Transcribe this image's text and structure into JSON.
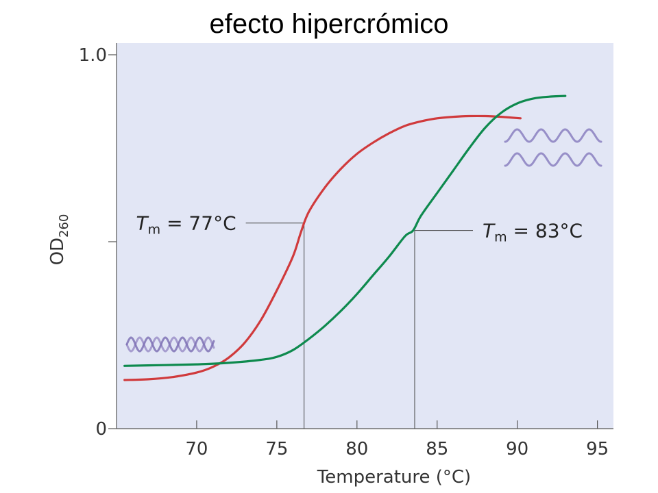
{
  "chart_data": {
    "type": "line",
    "title": "efecto hipercrómico",
    "xlabel": "Temperature (°C)",
    "ylabel_main": "OD",
    "ylabel_sub": "260",
    "xlim": [
      65,
      96
    ],
    "ylim": [
      0,
      1.0
    ],
    "x_ticks": [
      70,
      75,
      80,
      85,
      90,
      95
    ],
    "y_ticks": [
      {
        "value": 0,
        "label": "0"
      },
      {
        "value": 0.5,
        "label": ""
      },
      {
        "value": 1.0,
        "label": "1.0"
      }
    ],
    "series": [
      {
        "color": "#d03a3c",
        "x": [
          65.5,
          67,
          68.5,
          70,
          71,
          72,
          73,
          74,
          75,
          76,
          76.5,
          77,
          78,
          79,
          80,
          81,
          82,
          83,
          84,
          85,
          86,
          87,
          88,
          89,
          90.2
        ],
        "y": [
          0.13,
          0.132,
          0.138,
          0.15,
          0.165,
          0.19,
          0.23,
          0.29,
          0.37,
          0.46,
          0.525,
          0.58,
          0.645,
          0.695,
          0.735,
          0.765,
          0.79,
          0.81,
          0.822,
          0.83,
          0.834,
          0.836,
          0.836,
          0.834,
          0.83
        ]
      },
      {
        "color": "#0e8a4e",
        "x": [
          65.5,
          68,
          70,
          72,
          74,
          75,
          76,
          77,
          78,
          79,
          80,
          81,
          82,
          83,
          83.5,
          84,
          85,
          86,
          87,
          88,
          89,
          90,
          91,
          92,
          93
        ],
        "y": [
          0.168,
          0.17,
          0.172,
          0.176,
          0.184,
          0.192,
          0.21,
          0.24,
          0.275,
          0.315,
          0.36,
          0.41,
          0.46,
          0.515,
          0.53,
          0.57,
          0.63,
          0.69,
          0.75,
          0.805,
          0.845,
          0.87,
          0.883,
          0.888,
          0.89
        ]
      }
    ],
    "annotations": [
      {
        "label_T": "T",
        "label_sub": "m",
        "label_rest": " = 77°C",
        "x": 76.7,
        "y": 0.55,
        "label_side": "left"
      },
      {
        "label_T": "T",
        "label_sub": "m",
        "label_rest": " = 83°C",
        "x": 83.6,
        "y": 0.53,
        "label_side": "right"
      }
    ],
    "background_color": "#e2e6f5",
    "grid": false
  }
}
